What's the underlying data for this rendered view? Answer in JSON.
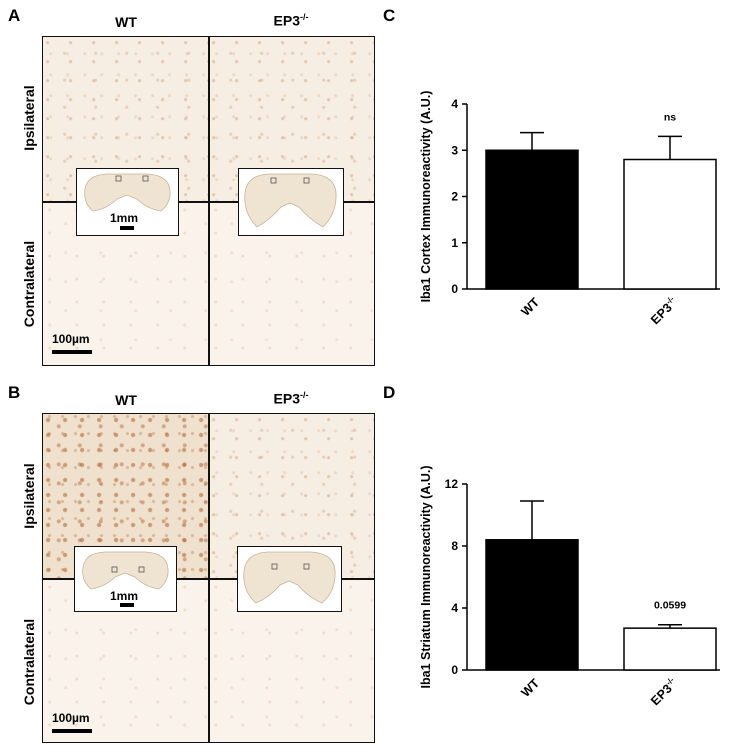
{
  "panels": {
    "A": {
      "letter": "A",
      "col_wt": "WT",
      "col_ep3": "EP3",
      "col_ep3_sup": "-/-",
      "row_top": "Ipsilateral",
      "row_bottom": "Contralateral",
      "inset_scale": "1mm",
      "scale": "100µm"
    },
    "B": {
      "letter": "B",
      "col_wt": "WT",
      "col_ep3": "EP3",
      "col_ep3_sup": "-/-",
      "row_top": "Ipsilateral",
      "row_bottom": "Contralateral",
      "inset_scale": "1mm",
      "scale": "100µm"
    },
    "C": {
      "letter": "C"
    },
    "D": {
      "letter": "D"
    }
  },
  "chart_data": [
    {
      "panel": "C",
      "type": "bar",
      "categories": [
        "WT",
        "EP3-/-"
      ],
      "category_labels": [
        {
          "main": "WT",
          "sup": ""
        },
        {
          "main": "EP3",
          "sup": "-/-"
        }
      ],
      "values": [
        3.0,
        2.8
      ],
      "errors": [
        0.38,
        0.5
      ],
      "bar_colors": [
        "#000000",
        "#ffffff"
      ],
      "ylabel": "Iba1 Cortex Immunoreactivity (A.U.)",
      "ylim": [
        0,
        4
      ],
      "yticks": [
        0,
        1,
        2,
        3,
        4
      ],
      "annotation": "ns"
    },
    {
      "panel": "D",
      "type": "bar",
      "categories": [
        "WT",
        "EP3-/-"
      ],
      "category_labels": [
        {
          "main": "WT",
          "sup": ""
        },
        {
          "main": "EP3",
          "sup": "-/-"
        }
      ],
      "values": [
        8.4,
        2.7
      ],
      "errors": [
        2.5,
        0.22
      ],
      "bar_colors": [
        "#000000",
        "#ffffff"
      ],
      "ylabel": "Iba1 Striatum Immunoreactivity (A.U.)",
      "ylim": [
        0,
        12
      ],
      "yticks": [
        0,
        4,
        8,
        12
      ],
      "annotation": "0.0599"
    }
  ]
}
